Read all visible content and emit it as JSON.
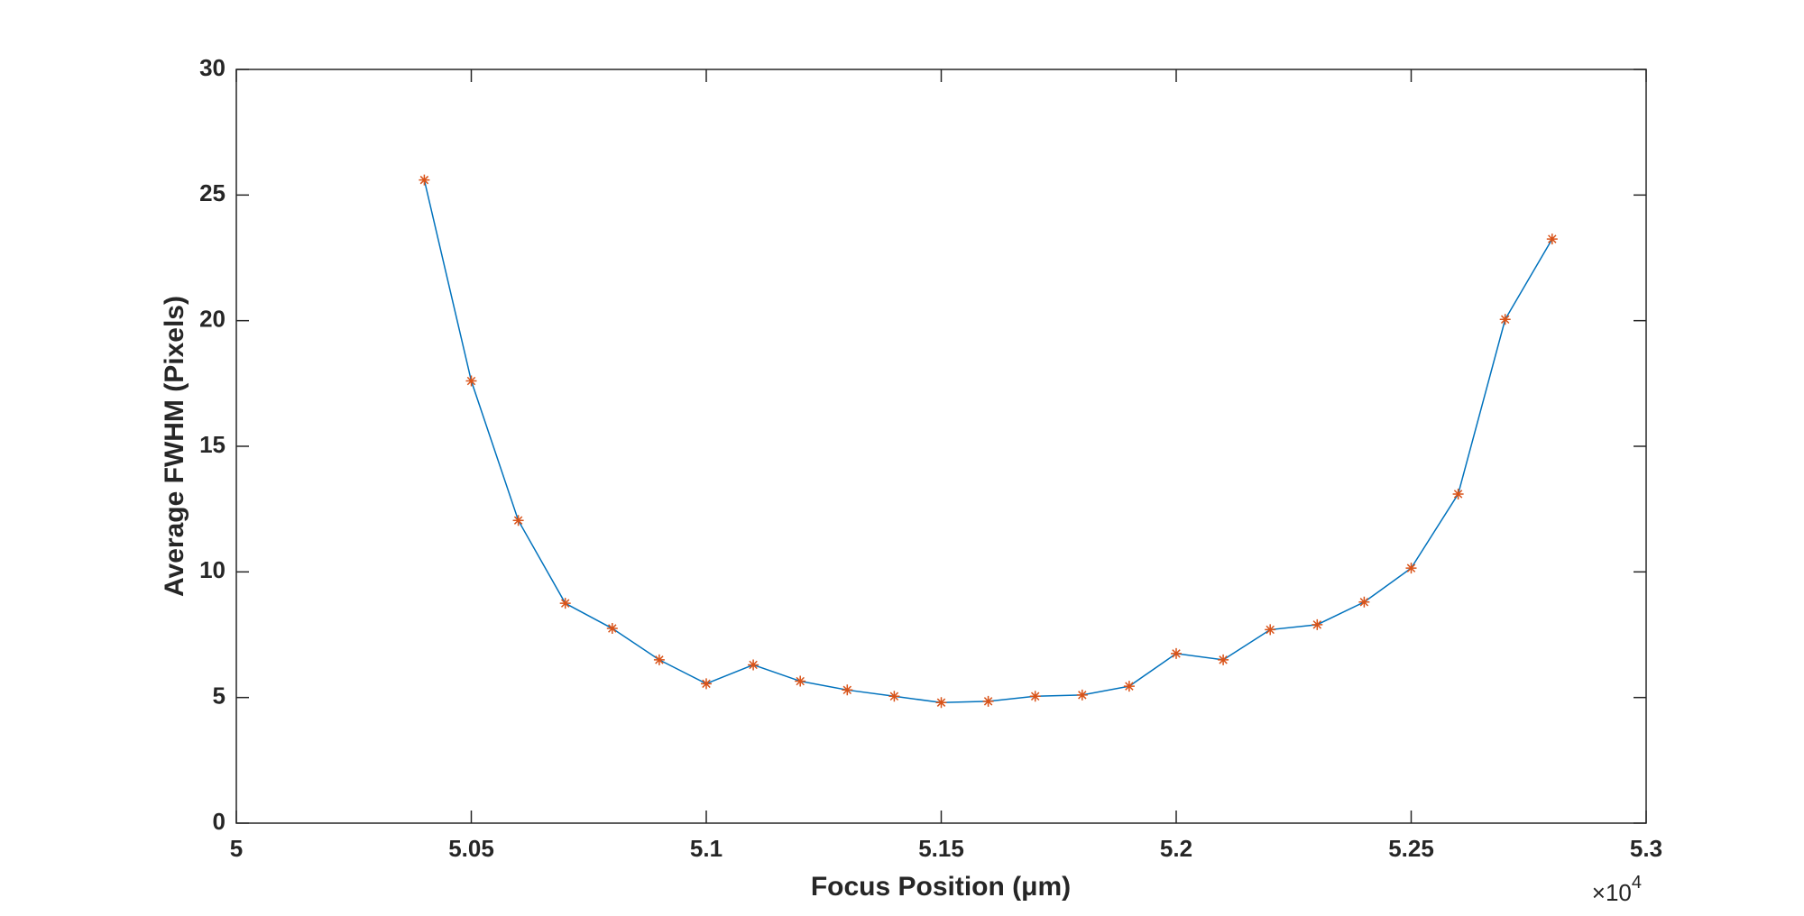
{
  "chart_data": {
    "type": "line",
    "xlabel": "Focus Position (μm)",
    "ylabel": "Average FWHM (Pixels)",
    "x_multiplier": {
      "base": "×10",
      "exponent": "4"
    },
    "x": [
      50400,
      50500,
      50600,
      50700,
      50800,
      50900,
      51000,
      51100,
      51200,
      51300,
      51400,
      51500,
      51600,
      51700,
      51800,
      51900,
      52000,
      52100,
      52200,
      52300,
      52400,
      52500,
      52600,
      52700,
      52800
    ],
    "series": [
      {
        "color": "#0072bd",
        "marker_color": "#d95319",
        "values": [
          25.6,
          17.6,
          12.05,
          8.75,
          7.75,
          6.5,
          5.55,
          6.3,
          5.65,
          5.3,
          5.05,
          4.8,
          4.85,
          5.05,
          5.1,
          5.45,
          6.75,
          6.5,
          7.7,
          7.9,
          8.8,
          10.15,
          13.1,
          20.05,
          23.25
        ]
      }
    ],
    "xlim": [
      50000,
      53000
    ],
    "xticks": [
      {
        "value": 50000,
        "label": "5"
      },
      {
        "value": 50500,
        "label": "5.05"
      },
      {
        "value": 51000,
        "label": "5.1"
      },
      {
        "value": 51500,
        "label": "5.15"
      },
      {
        "value": 52000,
        "label": "5.2"
      },
      {
        "value": 52500,
        "label": "5.25"
      },
      {
        "value": 53000,
        "label": "5.3"
      }
    ],
    "ylim": [
      0,
      30
    ],
    "yticks": [
      0,
      5,
      10,
      15,
      20,
      25,
      30
    ],
    "grid": false
  }
}
